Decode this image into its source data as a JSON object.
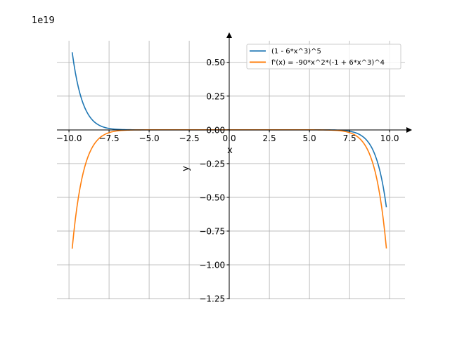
{
  "chart_data": {
    "type": "line",
    "title": "",
    "xlabel": "x",
    "ylabel": "y",
    "offset_label": "1e19",
    "scale": 1e+19,
    "xlim": [
      -10.75,
      10.96
    ],
    "ylim": [
      -1.255,
      0.66
    ],
    "grid": true,
    "legend_position": "top-right",
    "x_ticks": [
      -10.0,
      -7.5,
      -5.0,
      -2.5,
      0.0,
      2.5,
      5.0,
      7.5,
      10.0
    ],
    "x_tick_labels": [
      "−10.0",
      "−7.5",
      "−5.0",
      "−2.5",
      "0.0",
      "2.5",
      "5.0",
      "7.5",
      "10.0"
    ],
    "y_ticks": [
      0.5,
      0.25,
      0.0,
      -0.25,
      -0.5,
      -0.75,
      -1.0,
      -1.25
    ],
    "y_tick_labels": [
      "0.50",
      "0.25",
      "0.00",
      "−0.25",
      "−0.50",
      "−0.75",
      "−1.00",
      "−1.25"
    ],
    "x_range": [
      -9.8,
      9.8
    ],
    "n_points": 200,
    "series": [
      {
        "name": "(1 - 6*x^3)^5",
        "fn": "f",
        "color": "#1f77b4",
        "key_points": [
          [
            -9.8,
            0.575
          ],
          [
            -7.5,
            0.0157
          ],
          [
            0,
            0.0
          ],
          [
            7.5,
            -0.0157
          ],
          [
            9.8,
            -0.575
          ]
        ]
      },
      {
        "name": "f'(x) = -90*x^2*(-1 + 6*x^3)^4",
        "fn": "df",
        "color": "#ff7f0e",
        "key_points": [
          [
            -9.8,
            -0.878
          ],
          [
            -7.5,
            -0.0314
          ],
          [
            0,
            0.0
          ],
          [
            7.5,
            -0.0314
          ],
          [
            9.8,
            -0.878
          ]
        ]
      }
    ]
  }
}
